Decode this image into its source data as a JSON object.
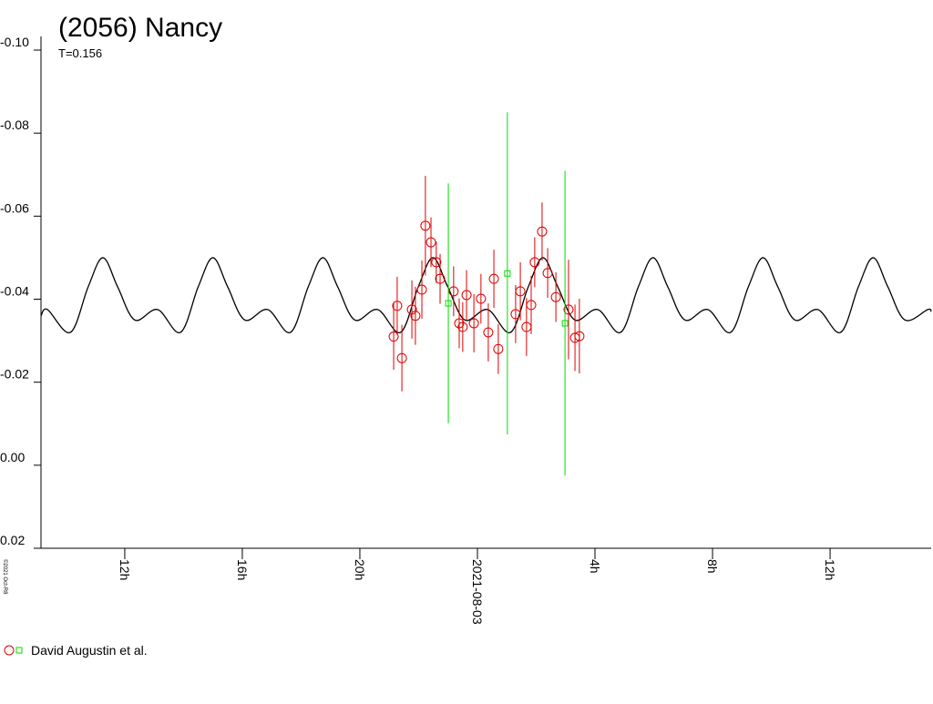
{
  "chart_data": {
    "type": "scatter",
    "title": "(2056) Nancy",
    "subtitle": "T=0.156",
    "credit": "©2021 Oct-R8",
    "xlim": [
      9.15,
      39.44
    ],
    "xticks": [
      {
        "value": 12,
        "label": "12h"
      },
      {
        "value": 16,
        "label": "16h"
      },
      {
        "value": 20,
        "label": "20h"
      },
      {
        "value": 24,
        "label": "2021-08-03"
      },
      {
        "value": 28,
        "label": "4h"
      },
      {
        "value": 32,
        "label": "8h"
      },
      {
        "value": 36,
        "label": "12h"
      }
    ],
    "ylim": [
      -0.1,
      0.02
    ],
    "y_inverted": true,
    "yticks": [
      {
        "value": -0.1,
        "label": "-0.10"
      },
      -0.08,
      -0.06,
      -0.04,
      -0.02,
      {
        "value": 0,
        "label": "0.00"
      },
      0.02
    ],
    "grid": false,
    "legend": {
      "label": "David Augustin et al.",
      "position": "bottom-left"
    },
    "model": {
      "color": "#000000",
      "x": [
        9.15,
        9.372,
        10.152,
        10.756,
        11.256,
        11.756,
        12.336,
        13.116,
        13.896,
        14.5,
        15.0,
        15.5,
        16.08,
        16.86,
        17.64,
        18.244,
        18.744,
        19.244,
        19.824,
        20.604,
        21.384,
        21.988,
        22.488,
        22.988,
        23.568,
        24.348,
        25.128,
        25.732,
        26.232,
        26.732,
        27.312,
        28.092,
        28.872,
        29.476,
        29.976,
        30.476,
        31.056,
        31.836,
        32.616,
        33.22,
        33.72,
        34.22,
        34.8,
        35.58,
        36.36,
        36.964,
        37.464,
        37.964,
        38.544,
        39.324,
        39.44
      ],
      "values": [
        -0.036,
        -0.0375,
        -0.032,
        -0.043,
        -0.05,
        -0.043,
        -0.035,
        -0.0375,
        -0.032,
        -0.043,
        -0.05,
        -0.043,
        -0.035,
        -0.0375,
        -0.032,
        -0.043,
        -0.05,
        -0.043,
        -0.035,
        -0.0375,
        -0.032,
        -0.043,
        -0.05,
        -0.043,
        -0.035,
        -0.0375,
        -0.032,
        -0.043,
        -0.05,
        -0.043,
        -0.035,
        -0.0375,
        -0.032,
        -0.043,
        -0.05,
        -0.043,
        -0.035,
        -0.0375,
        -0.032,
        -0.043,
        -0.05,
        -0.043,
        -0.035,
        -0.0375,
        -0.032,
        -0.043,
        -0.05,
        -0.043,
        -0.035,
        -0.0375,
        -0.037
      ]
    },
    "series": [
      {
        "color": "#dd0000",
        "marker": "circle",
        "x": [
          21.15,
          21.27,
          21.43,
          21.77,
          21.89,
          22.11,
          22.23,
          22.42,
          22.6,
          22.73,
          23.19,
          23.38,
          23.5,
          23.63,
          23.88,
          24.12,
          24.37,
          24.56,
          24.71,
          25.3,
          25.46,
          25.67,
          25.83,
          25.95,
          26.2,
          26.39,
          26.67,
          27.1,
          27.32,
          27.47
        ],
        "values": [
          -0.031,
          -0.0384,
          -0.0258,
          -0.0375,
          -0.036,
          -0.0423,
          -0.0577,
          -0.0537,
          -0.0489,
          -0.0449,
          -0.0419,
          -0.0342,
          -0.0333,
          -0.041,
          -0.0342,
          -0.0401,
          -0.032,
          -0.0449,
          -0.028,
          -0.0364,
          -0.0419,
          -0.0333,
          -0.0386,
          -0.0489,
          -0.0563,
          -0.0463,
          -0.0405,
          -0.0375,
          -0.0307,
          -0.0311
        ],
        "errors": [
          0.008,
          0.007,
          0.008,
          0.007,
          0.007,
          0.007,
          0.012,
          0.006,
          0.005,
          0.006,
          0.006,
          0.006,
          0.006,
          0.006,
          0.007,
          0.006,
          0.007,
          0.007,
          0.006,
          0.007,
          0.007,
          0.007,
          0.007,
          0.006,
          0.007,
          0.006,
          0.006,
          0.012,
          0.008,
          0.009
        ]
      },
      {
        "color": "#00dd00",
        "marker": "square",
        "x": [
          23.01,
          25.02,
          26.98
        ],
        "values": [
          -0.039,
          -0.0462,
          -0.0342
        ],
        "errors": [
          0.0289,
          0.0388,
          0.0367
        ]
      }
    ]
  }
}
